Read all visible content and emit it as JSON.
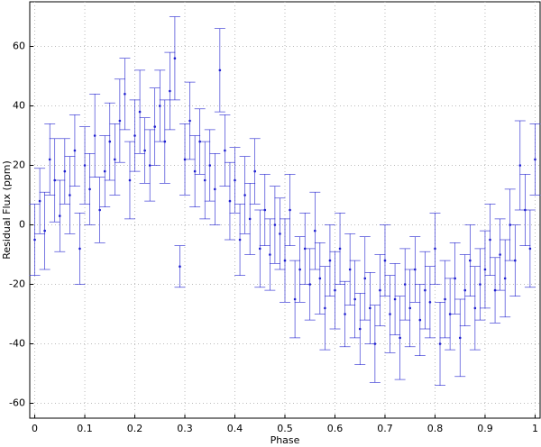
{
  "chart_data": {
    "type": "scatter",
    "xlabel": "Phase",
    "ylabel": "Residual Flux (ppm)",
    "xlim": [
      -0.01,
      1.01
    ],
    "ylim": [
      -65,
      75
    ],
    "xticks": [
      0,
      0.1,
      0.2,
      0.3,
      0.4,
      0.5,
      0.6,
      0.7,
      0.8,
      0.9,
      1
    ],
    "yticks": [
      -60,
      -40,
      -20,
      0,
      20,
      40,
      60
    ],
    "grid": true,
    "series": [
      {
        "color": "#1f1fcf",
        "x": [
          0,
          0.01,
          0.02,
          0.03,
          0.04,
          0.05,
          0.06,
          0.07,
          0.08,
          0.09,
          0.1,
          0.11,
          0.12,
          0.13,
          0.14,
          0.15,
          0.16,
          0.17,
          0.18,
          0.19,
          0.2,
          0.21,
          0.22,
          0.23,
          0.24,
          0.25,
          0.26,
          0.27,
          0.28,
          0.29,
          0.3,
          0.31,
          0.32,
          0.33,
          0.34,
          0.35,
          0.36,
          0.37,
          0.38,
          0.39,
          0.4,
          0.41,
          0.42,
          0.43,
          0.44,
          0.45,
          0.46,
          0.47,
          0.48,
          0.49,
          0.5,
          0.51,
          0.52,
          0.53,
          0.54,
          0.55,
          0.56,
          0.57,
          0.58,
          0.59,
          0.6,
          0.61,
          0.62,
          0.63,
          0.64,
          0.65,
          0.66,
          0.67,
          0.68,
          0.69,
          0.7,
          0.71,
          0.72,
          0.73,
          0.74,
          0.75,
          0.76,
          0.77,
          0.78,
          0.79,
          0.8,
          0.81,
          0.82,
          0.83,
          0.84,
          0.85,
          0.86,
          0.87,
          0.88,
          0.89,
          0.9,
          0.91,
          0.92,
          0.93,
          0.94,
          0.95,
          0.96,
          0.97,
          0.98,
          0.99,
          1
        ],
        "y": [
          -5,
          8,
          -2,
          22,
          15,
          3,
          18,
          10,
          25,
          -8,
          20,
          12,
          30,
          5,
          18,
          28,
          22,
          35,
          44,
          15,
          30,
          38,
          25,
          20,
          33,
          40,
          28,
          45,
          56,
          -14,
          22,
          35,
          18,
          28,
          15,
          20,
          12,
          52,
          25,
          8,
          15,
          -5,
          10,
          2,
          18,
          -8,
          5,
          -10,
          0,
          -3,
          -12,
          5,
          -25,
          -15,
          -8,
          -20,
          -2,
          -18,
          -28,
          -12,
          -22,
          -8,
          -30,
          -15,
          -25,
          -35,
          -18,
          -28,
          -40,
          -22,
          -12,
          -30,
          -25,
          -38,
          -20,
          -28,
          -15,
          -32,
          -22,
          -26,
          -8,
          -40,
          -25,
          -30,
          -18,
          -38,
          -22,
          -12,
          -28,
          -20,
          -15,
          -5,
          -22,
          -10,
          -18,
          0,
          -12,
          20,
          5,
          -8,
          22
        ],
        "error": [
          12,
          11,
          13,
          12,
          14,
          12,
          11,
          13,
          12,
          12,
          13,
          12,
          14,
          11,
          12,
          13,
          12,
          14,
          12,
          13,
          12,
          14,
          11,
          12,
          13,
          12,
          14,
          13,
          14,
          7,
          12,
          13,
          12,
          11,
          13,
          12,
          12,
          14,
          12,
          13,
          11,
          12,
          13,
          12,
          11,
          13,
          12,
          12,
          13,
          12,
          14,
          12,
          13,
          11,
          12,
          12,
          13,
          12,
          14,
          12,
          13,
          12,
          11,
          12,
          13,
          12,
          14,
          12,
          13,
          12,
          12,
          13,
          12,
          14,
          12,
          13,
          11,
          12,
          13,
          12,
          12,
          14,
          13,
          12,
          12,
          13,
          12,
          12,
          14,
          12,
          13,
          12,
          11,
          12,
          13,
          12,
          12,
          15,
          12,
          13,
          12
        ]
      }
    ]
  }
}
